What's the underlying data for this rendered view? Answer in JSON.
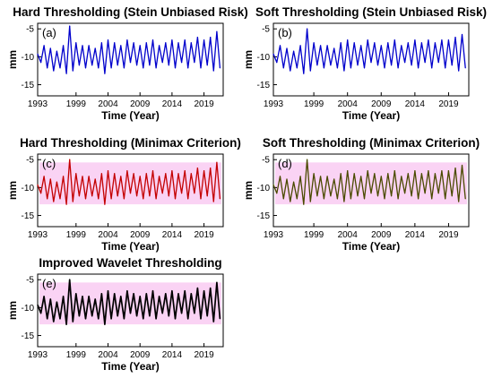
{
  "colors": {
    "blue": "#0000cc",
    "red": "#c40000",
    "olive": "#4a4a00",
    "black": "#000000",
    "magenta_band": "#f8c4f0"
  },
  "chart_data": [
    {
      "type": "line",
      "panel_label": "(a)",
      "title": "Hard Thresholding (Stein Unbiased Risk)",
      "xlabel": "Time (Year)",
      "ylabel": "mm",
      "xticks": [
        "1993",
        "1999",
        "2004",
        "2009",
        "2014",
        "2019"
      ],
      "yticks": [
        "-5",
        "-10",
        "-15"
      ],
      "xlim": [
        1993,
        2022
      ],
      "ylim": [
        -17,
        -4
      ],
      "grid": false,
      "series": [
        {
          "color": "#0000cc",
          "x": [
            1993,
            1993.5,
            1994,
            1994.5,
            1995,
            1995.5,
            1996,
            1996.5,
            1997,
            1997.5,
            1998,
            1998.5,
            1999,
            1999.5,
            2000,
            2000.5,
            2001,
            2001.5,
            2002,
            2002.5,
            2003,
            2003.5,
            2004,
            2004.5,
            2005,
            2005.5,
            2006,
            2006.5,
            2007,
            2007.5,
            2008,
            2008.5,
            2009,
            2009.5,
            2010,
            2010.5,
            2011,
            2011.5,
            2012,
            2012.5,
            2013,
            2013.5,
            2014,
            2014.5,
            2015,
            2015.5,
            2016,
            2016.5,
            2017,
            2017.5,
            2018,
            2018.5,
            2019,
            2019.5,
            2020,
            2020.5,
            2021,
            2021.5
          ],
          "y": [
            -9.5,
            -11,
            -8,
            -12,
            -8.5,
            -12.5,
            -9,
            -12,
            -8,
            -13,
            -4.5,
            -12.5,
            -7.5,
            -11.5,
            -8,
            -12,
            -8,
            -11.5,
            -8.5,
            -12,
            -7.5,
            -13,
            -7,
            -12,
            -7.5,
            -11.5,
            -8,
            -12,
            -7,
            -11,
            -7.5,
            -11.5,
            -8,
            -12,
            -7.5,
            -11.5,
            -7,
            -12,
            -8,
            -11,
            -7.5,
            -11.5,
            -7,
            -12,
            -7.5,
            -11,
            -7,
            -12,
            -7.5,
            -11,
            -6.5,
            -12,
            -7,
            -11.5,
            -6.5,
            -12.5,
            -5.5,
            -12
          ]
        }
      ]
    },
    {
      "type": "line",
      "panel_label": "(b)",
      "title": "Soft Thresholding (Stein Unbiased Risk)",
      "xlabel": "Time (Year)",
      "ylabel": "mm",
      "xticks": [
        "1993",
        "1999",
        "2004",
        "2009",
        "2014",
        "2019"
      ],
      "yticks": [
        "-5",
        "-10",
        "-15"
      ],
      "xlim": [
        1993,
        2022
      ],
      "ylim": [
        -17,
        -4
      ],
      "grid": false,
      "series": [
        {
          "color": "#0000cc",
          "x": [
            1993,
            1993.5,
            1994,
            1994.5,
            1995,
            1995.5,
            1996,
            1996.5,
            1997,
            1997.5,
            1998,
            1998.5,
            1999,
            1999.5,
            2000,
            2000.5,
            2001,
            2001.5,
            2002,
            2002.5,
            2003,
            2003.5,
            2004,
            2004.5,
            2005,
            2005.5,
            2006,
            2006.5,
            2007,
            2007.5,
            2008,
            2008.5,
            2009,
            2009.5,
            2010,
            2010.5,
            2011,
            2011.5,
            2012,
            2012.5,
            2013,
            2013.5,
            2014,
            2014.5,
            2015,
            2015.5,
            2016,
            2016.5,
            2017,
            2017.5,
            2018,
            2018.5,
            2019,
            2019.5,
            2020,
            2020.5,
            2021,
            2021.5
          ],
          "y": [
            -9.5,
            -11,
            -8,
            -12,
            -8.5,
            -12.5,
            -9,
            -12,
            -8,
            -13,
            -5,
            -12.5,
            -7.5,
            -11.5,
            -8,
            -12,
            -8,
            -11.5,
            -8.5,
            -12,
            -7.5,
            -12.5,
            -7,
            -12,
            -7.5,
            -11.5,
            -8,
            -12,
            -7,
            -11,
            -7.5,
            -11.5,
            -8,
            -12,
            -7.5,
            -11.5,
            -7,
            -12,
            -8,
            -11,
            -7.5,
            -11.5,
            -7,
            -12,
            -7.5,
            -11,
            -7,
            -12,
            -7.5,
            -11,
            -7,
            -12,
            -7,
            -11.5,
            -6.5,
            -12.5,
            -6,
            -12
          ]
        }
      ]
    },
    {
      "type": "line",
      "panel_label": "(c)",
      "title": "Hard Thresholding (Minimax Criterion)",
      "xlabel": "Time (Year)",
      "ylabel": "mm",
      "xticks": [
        "1993",
        "1999",
        "2004",
        "2009",
        "2014",
        "2019"
      ],
      "yticks": [
        "-5",
        "-10",
        "-15"
      ],
      "xlim": [
        1993,
        2022
      ],
      "ylim": [
        -17,
        -4
      ],
      "grid": false,
      "series": [
        {
          "color": "#c40000",
          "x": [
            1993,
            1993.5,
            1994,
            1994.5,
            1995,
            1995.5,
            1996,
            1996.5,
            1997,
            1997.5,
            1998,
            1998.5,
            1999,
            1999.5,
            2000,
            2000.5,
            2001,
            2001.5,
            2002,
            2002.5,
            2003,
            2003.5,
            2004,
            2004.5,
            2005,
            2005.5,
            2006,
            2006.5,
            2007,
            2007.5,
            2008,
            2008.5,
            2009,
            2009.5,
            2010,
            2010.5,
            2011,
            2011.5,
            2012,
            2012.5,
            2013,
            2013.5,
            2014,
            2014.5,
            2015,
            2015.5,
            2016,
            2016.5,
            2017,
            2017.5,
            2018,
            2018.5,
            2019,
            2019.5,
            2020,
            2020.5,
            2021,
            2021.5
          ],
          "y": [
            -9.5,
            -11,
            -8,
            -12,
            -8.5,
            -12.5,
            -9,
            -12,
            -8,
            -13,
            -5,
            -12.5,
            -7.5,
            -11.5,
            -8,
            -12,
            -8,
            -11.5,
            -8.5,
            -12,
            -7.5,
            -13,
            -7,
            -12,
            -7.5,
            -11.5,
            -8,
            -12,
            -7,
            -11,
            -7.5,
            -11.5,
            -8,
            -12,
            -7.5,
            -11.5,
            -7,
            -12,
            -8,
            -11,
            -7.5,
            -11.5,
            -7,
            -12,
            -7.5,
            -11,
            -7,
            -12,
            -7.5,
            -11,
            -6.5,
            -12,
            -7,
            -11.5,
            -6.5,
            -12.5,
            -5.5,
            -12
          ]
        }
      ]
    },
    {
      "type": "line",
      "panel_label": "(d)",
      "title": "Soft Thresholding (Minimax Criterion)",
      "xlabel": "Time (Year)",
      "ylabel": "mm",
      "xticks": [
        "1993",
        "1999",
        "2004",
        "2009",
        "2014",
        "2019"
      ],
      "yticks": [
        "-5",
        "-10",
        "-15"
      ],
      "xlim": [
        1993,
        2022
      ],
      "ylim": [
        -17,
        -4
      ],
      "grid": false,
      "series": [
        {
          "color": "#4a4a00",
          "x": [
            1993,
            1993.5,
            1994,
            1994.5,
            1995,
            1995.5,
            1996,
            1996.5,
            1997,
            1997.5,
            1998,
            1998.5,
            1999,
            1999.5,
            2000,
            2000.5,
            2001,
            2001.5,
            2002,
            2002.5,
            2003,
            2003.5,
            2004,
            2004.5,
            2005,
            2005.5,
            2006,
            2006.5,
            2007,
            2007.5,
            2008,
            2008.5,
            2009,
            2009.5,
            2010,
            2010.5,
            2011,
            2011.5,
            2012,
            2012.5,
            2013,
            2013.5,
            2014,
            2014.5,
            2015,
            2015.5,
            2016,
            2016.5,
            2017,
            2017.5,
            2018,
            2018.5,
            2019,
            2019.5,
            2020,
            2020.5,
            2021,
            2021.5
          ],
          "y": [
            -9.5,
            -11,
            -8,
            -12,
            -8.5,
            -12.5,
            -9,
            -12,
            -8,
            -13,
            -5,
            -12.5,
            -7.5,
            -11.5,
            -8,
            -12,
            -8,
            -11.5,
            -8.5,
            -12,
            -7.5,
            -12.5,
            -7,
            -12,
            -7.5,
            -11.5,
            -8,
            -12,
            -7,
            -11,
            -7.5,
            -11.5,
            -8,
            -12,
            -7.5,
            -11.5,
            -7,
            -12,
            -8,
            -11,
            -7.5,
            -11.5,
            -7,
            -12,
            -7.5,
            -11,
            -7,
            -12,
            -7.5,
            -11,
            -7,
            -12,
            -7,
            -11.5,
            -6.5,
            -12.5,
            -6,
            -12
          ]
        }
      ]
    },
    {
      "type": "line",
      "panel_label": "(e)",
      "title": "Improved Wavelet Thresholding",
      "xlabel": "Time (Year)",
      "ylabel": "mm",
      "xticks": [
        "1993",
        "1999",
        "2004",
        "2009",
        "2014",
        "2019"
      ],
      "yticks": [
        "-5",
        "-10",
        "-15"
      ],
      "xlim": [
        1993,
        2022
      ],
      "ylim": [
        -17,
        -4
      ],
      "grid": false,
      "series": [
        {
          "color": "#000000",
          "x": [
            1993,
            1993.5,
            1994,
            1994.5,
            1995,
            1995.5,
            1996,
            1996.5,
            1997,
            1997.5,
            1998,
            1998.5,
            1999,
            1999.5,
            2000,
            2000.5,
            2001,
            2001.5,
            2002,
            2002.5,
            2003,
            2003.5,
            2004,
            2004.5,
            2005,
            2005.5,
            2006,
            2006.5,
            2007,
            2007.5,
            2008,
            2008.5,
            2009,
            2009.5,
            2010,
            2010.5,
            2011,
            2011.5,
            2012,
            2012.5,
            2013,
            2013.5,
            2014,
            2014.5,
            2015,
            2015.5,
            2016,
            2016.5,
            2017,
            2017.5,
            2018,
            2018.5,
            2019,
            2019.5,
            2020,
            2020.5,
            2021,
            2021.5
          ],
          "y": [
            -9.5,
            -11,
            -8,
            -12,
            -8.5,
            -12.5,
            -9,
            -12,
            -8,
            -13,
            -5,
            -12.5,
            -7.5,
            -11.5,
            -8,
            -12,
            -8,
            -11.5,
            -8.5,
            -12,
            -7.5,
            -13,
            -7,
            -12,
            -7.5,
            -11.5,
            -8,
            -12,
            -7,
            -11,
            -7.5,
            -11.5,
            -8,
            -12,
            -7.5,
            -11.5,
            -7,
            -12,
            -8,
            -11,
            -7.5,
            -11.5,
            -7,
            -12,
            -7.5,
            -11,
            -7,
            -12,
            -7.5,
            -11,
            -6.5,
            -12,
            -7,
            -11.5,
            -6.5,
            -12.5,
            -5.5,
            -12
          ]
        }
      ]
    }
  ]
}
